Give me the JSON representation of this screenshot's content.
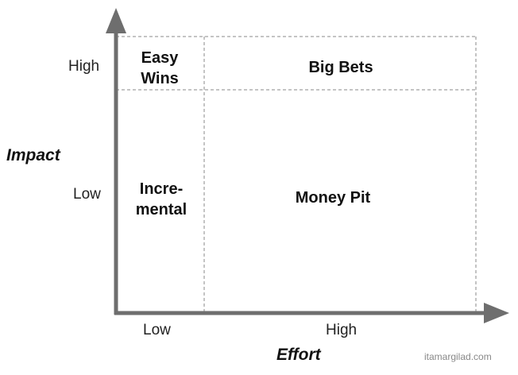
{
  "y_axis": {
    "title": "Impact",
    "ticks": {
      "high": "High",
      "low": "Low"
    }
  },
  "x_axis": {
    "title": "Effort",
    "ticks": {
      "low": "Low",
      "high": "High"
    }
  },
  "quadrants": {
    "top_left": {
      "line1": "Easy",
      "line2": "Wins"
    },
    "top_right": {
      "label": "Big Bets"
    },
    "bottom_left": {
      "line1": "Incre-",
      "line2": "mental"
    },
    "bottom_right": {
      "label": "Money Pit"
    }
  },
  "watermark": "itamargilad.com",
  "colors": {
    "axis": "#6e6e6e",
    "grid": "#8a8a8a",
    "text": "#111111"
  }
}
